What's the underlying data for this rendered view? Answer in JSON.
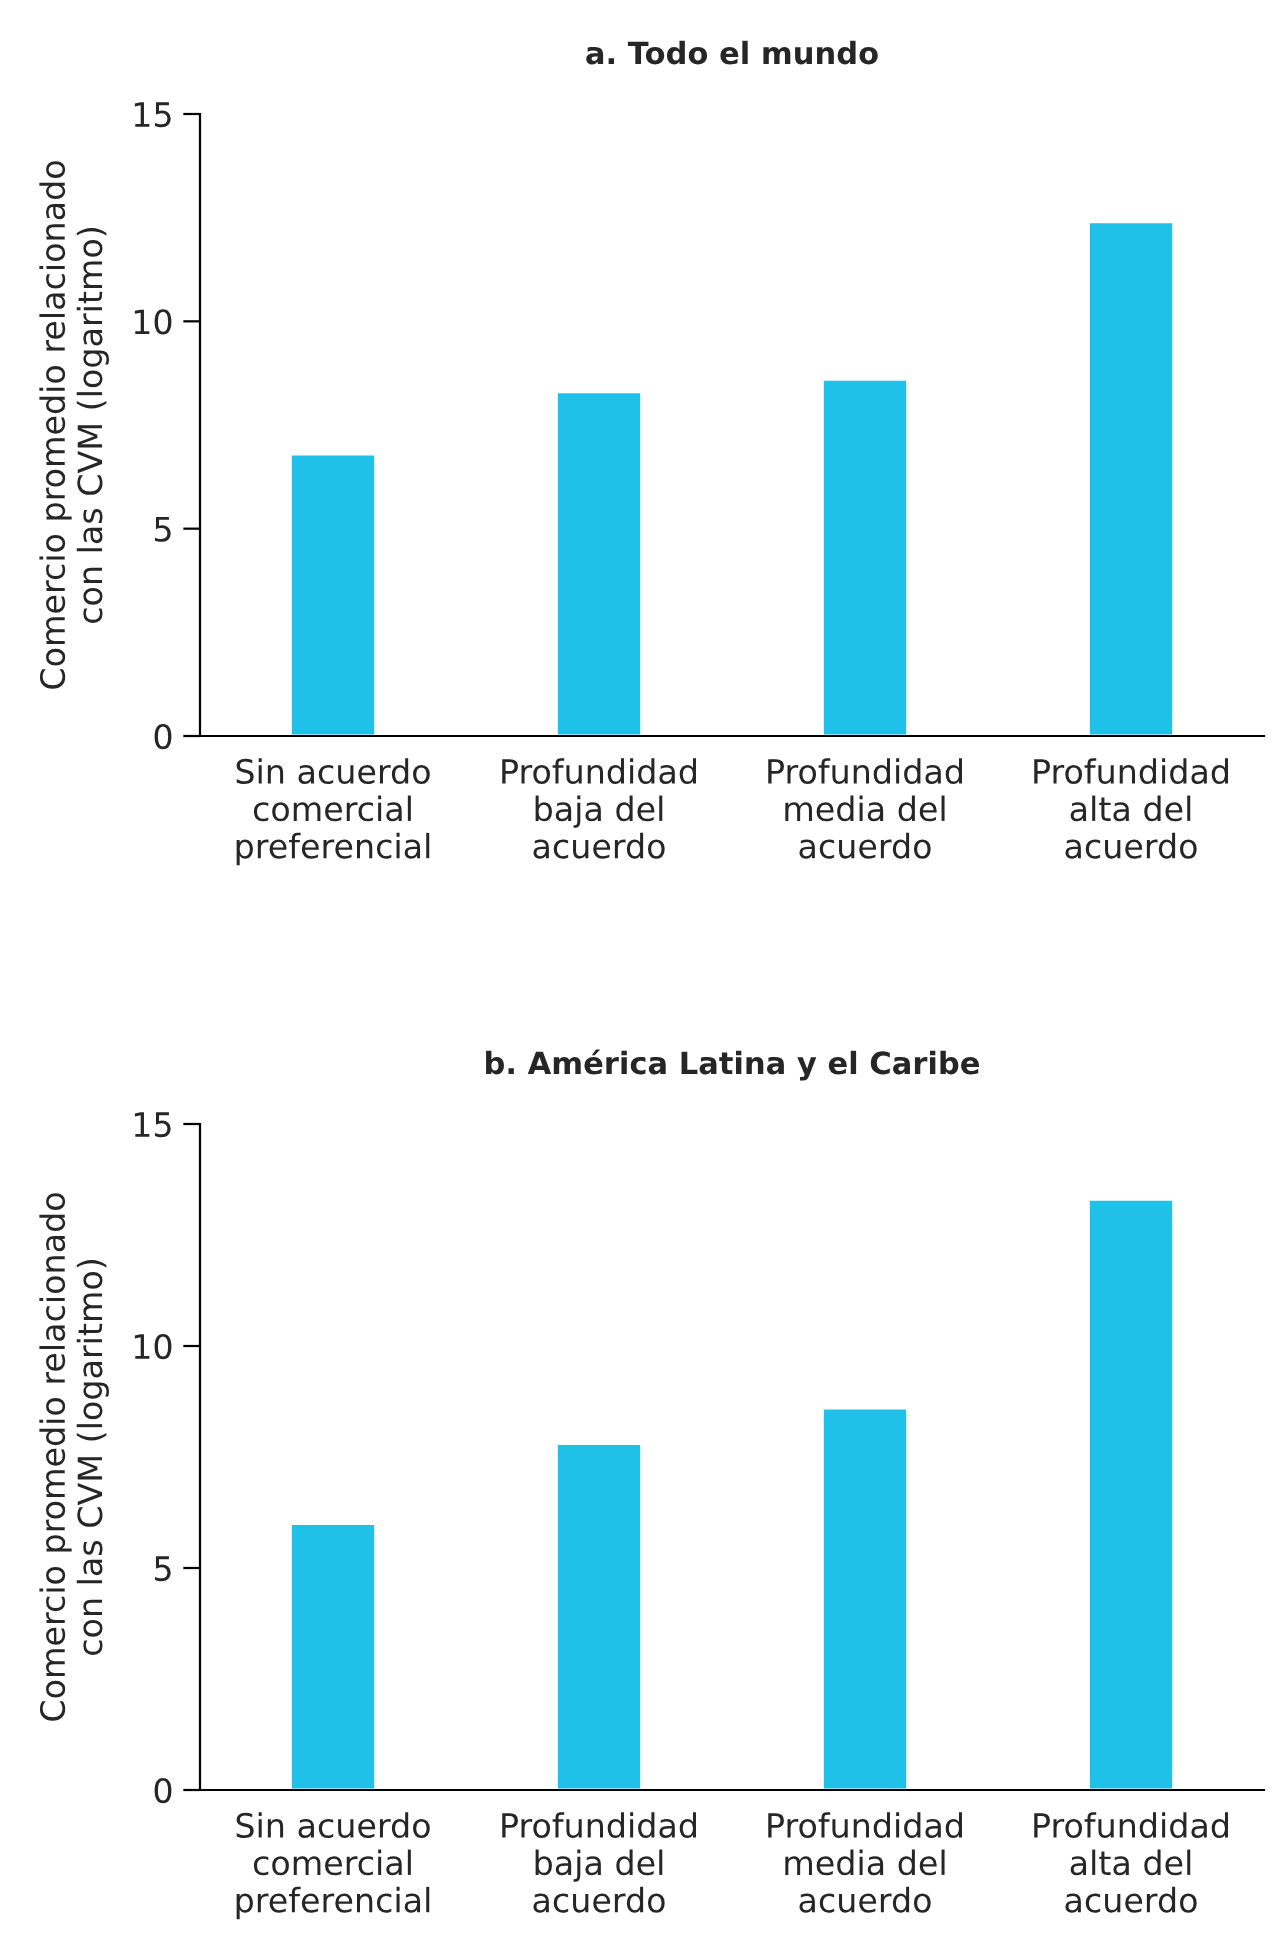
{
  "chart_data": [
    {
      "type": "bar",
      "title": "a. Todo el mundo",
      "ylabel": "Comercio promedio relacionado\ncon las CVM (logaritmo)",
      "categories": [
        "Sin acuerdo\ncomercial\npreferencial",
        "Profundidad\nbaja del\nacuerdo",
        "Profundidad\nmedia del\nacuerdo",
        "Profundidad\nalta del\nacuerdo"
      ],
      "values": [
        6.8,
        8.3,
        8.6,
        12.4
      ],
      "color": "#1fc1e8",
      "ylim": [
        0,
        15
      ],
      "yticks": [
        0,
        5,
        10,
        15
      ],
      "grid": false
    },
    {
      "type": "bar",
      "title": "b. América Latina y el Caribe",
      "ylabel": "Comercio promedio relacionado\ncon las CVM (logaritmo)",
      "categories": [
        "Sin acuerdo\ncomercial\npreferencial",
        "Profundidad\nbaja del\nacuerdo",
        "Profundidad\nmedia del\nacuerdo",
        "Profundidad\nalta del\nacuerdo"
      ],
      "values": [
        6.0,
        7.8,
        8.6,
        13.3
      ],
      "color": "#1fc1e8",
      "ylim": [
        0,
        15
      ],
      "yticks": [
        0,
        5,
        10,
        15
      ],
      "grid": false
    }
  ]
}
